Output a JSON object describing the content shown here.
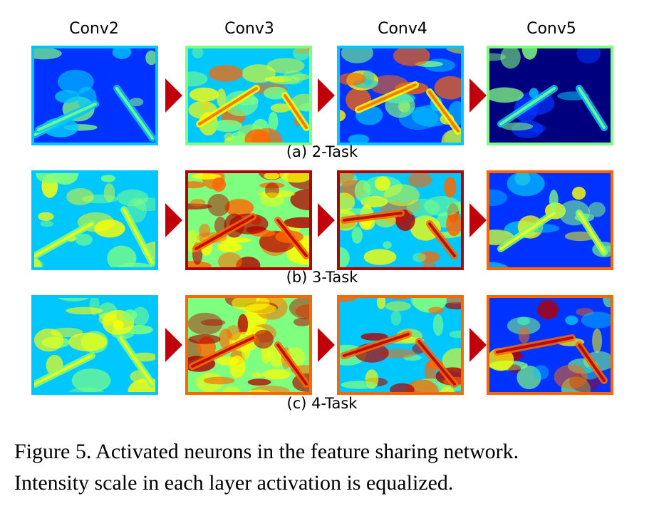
{
  "figure": {
    "columns": [
      "Conv2",
      "Conv3",
      "Conv4",
      "Conv5"
    ],
    "rows": [
      {
        "label": "(a) 2-Task",
        "panel_icons": [
          "activation-map-icon",
          "activation-map-icon",
          "activation-map-icon",
          "activation-map-icon"
        ]
      },
      {
        "label": "(b) 3-Task",
        "panel_icons": [
          "activation-map-icon",
          "activation-map-icon",
          "activation-map-icon",
          "activation-map-icon"
        ]
      },
      {
        "label": "(c) 4-Task",
        "panel_icons": [
          "activation-map-icon",
          "activation-map-icon",
          "activation-map-icon",
          "activation-map-icon"
        ]
      }
    ],
    "arrow_color": "#c0000b",
    "colormap": [
      "#00007f",
      "#0033ff",
      "#00c8ff",
      "#7fff7f",
      "#ffff00",
      "#ff6600",
      "#b30000"
    ],
    "caption_line1": "Figure 5. Activated neurons in the feature sharing network.",
    "caption_line2": "Intensity scale in each layer activation is equalized."
  }
}
